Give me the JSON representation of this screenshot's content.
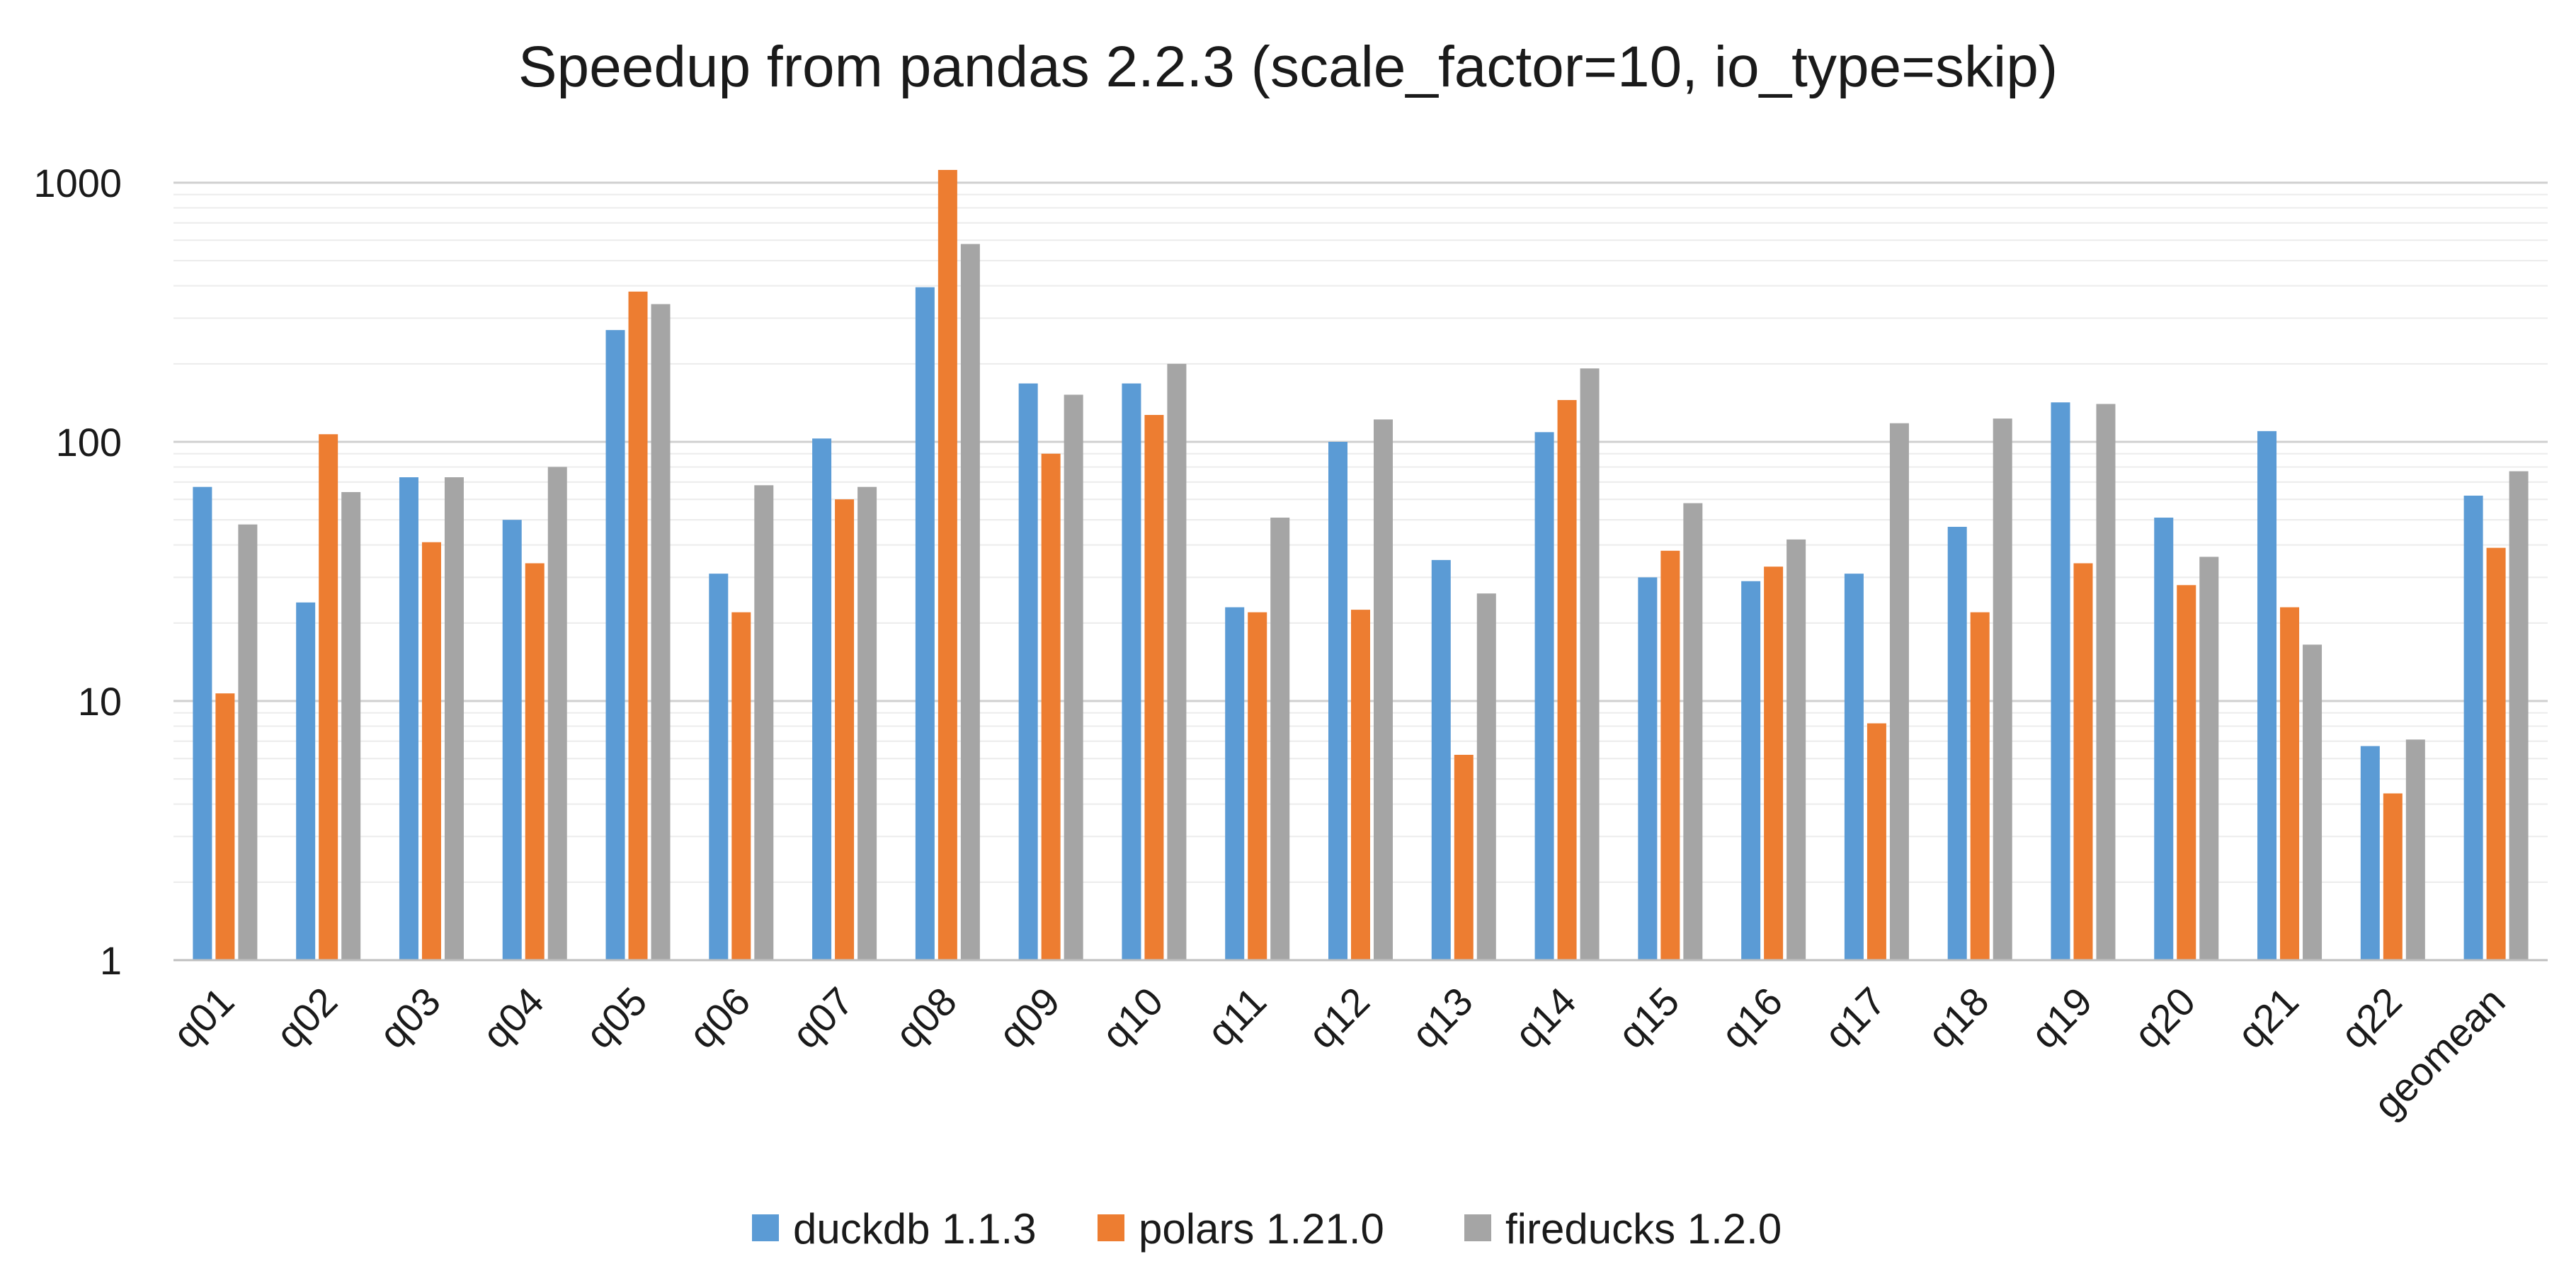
{
  "chart_data": {
    "type": "bar",
    "title": "Speedup from pandas 2.2.3 (scale_factor=10, io_type=skip)",
    "xlabel": "",
    "ylabel": "",
    "yscale": "log",
    "ylim": [
      1,
      1300
    ],
    "yticks": [
      1,
      10,
      100,
      1000
    ],
    "ytick_labels": [
      "1",
      "10",
      "100",
      "1000"
    ],
    "grid": "major and minor horizontal",
    "legend_position": "bottom",
    "categories": [
      "q01",
      "q02",
      "q03",
      "q04",
      "q05",
      "q06",
      "q07",
      "q08",
      "q09",
      "q10",
      "q11",
      "q12",
      "q13",
      "q14",
      "q15",
      "q16",
      "q17",
      "q18",
      "q19",
      "q20",
      "q21",
      "q22",
      "geomean"
    ],
    "series": [
      {
        "name": "duckdb 1.1.3",
        "color": "#5b9bd5",
        "values": [
          67,
          24,
          73,
          50,
          270,
          31,
          103,
          395,
          168,
          168,
          23,
          100,
          35,
          109,
          30,
          29,
          31,
          47,
          142,
          51,
          110,
          6.7,
          62
        ]
      },
      {
        "name": "polars 1.21.0",
        "color": "#ed7d31",
        "values": [
          10.7,
          107,
          41,
          34,
          380,
          22,
          60,
          1120,
          90,
          127,
          22,
          22.5,
          6.2,
          145,
          38,
          33,
          8.2,
          22,
          34,
          28,
          23,
          4.4,
          39
        ]
      },
      {
        "name": "fireducks 1.2.0",
        "color": "#a5a5a5",
        "values": [
          48,
          64,
          73,
          80,
          340,
          68,
          67,
          580,
          152,
          200,
          51,
          122,
          26,
          192,
          58,
          42,
          118,
          123,
          140,
          36,
          16.5,
          7.1,
          77
        ]
      }
    ]
  }
}
